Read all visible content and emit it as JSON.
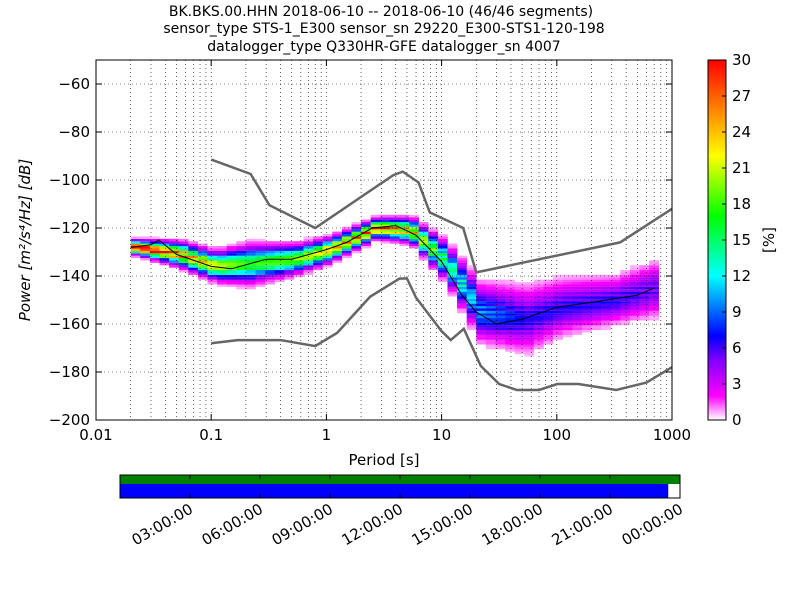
{
  "chart_data": {
    "type": "heatmap",
    "title_lines": [
      "BK.BKS.00.HHN   2018-06-10 -- 2018-06-10  (46/46 segments)",
      "sensor_type STS-1_E300 sensor_sn 29220_E300-STS1-120-198",
      "datalogger_type Q330HR-GFE datalogger_sn 4007"
    ],
    "xlabel": "Period [s]",
    "ylabel": "Power [m²/s⁴/Hz] [dB]",
    "xscale": "log",
    "xlim": [
      0.01,
      1000
    ],
    "ylim": [
      -200,
      -50
    ],
    "xticks": [
      {
        "v": 0.01,
        "l": "0.01"
      },
      {
        "v": 0.1,
        "l": "0.1"
      },
      {
        "v": 1,
        "l": "1"
      },
      {
        "v": 10,
        "l": "10"
      },
      {
        "v": 100,
        "l": "100"
      },
      {
        "v": 1000,
        "l": "1000"
      }
    ],
    "yticks": [
      {
        "v": -60,
        "l": "−60"
      },
      {
        "v": -80,
        "l": "−80"
      },
      {
        "v": -100,
        "l": "−100"
      },
      {
        "v": -120,
        "l": "−120"
      },
      {
        "v": -140,
        "l": "−140"
      },
      {
        "v": -160,
        "l": "−160"
      },
      {
        "v": -180,
        "l": "−180"
      },
      {
        "v": -200,
        "l": "−200"
      }
    ],
    "grid": true,
    "colorbar": {
      "label": "[%]",
      "range": [
        0,
        30
      ],
      "ticks": [
        "0",
        "3",
        "6",
        "9",
        "12",
        "15",
        "18",
        "21",
        "24",
        "27",
        "30"
      ]
    },
    "nhnm": [
      [
        0.1,
        -91.5
      ],
      [
        0.22,
        -97.5
      ],
      [
        0.32,
        -110.5
      ],
      [
        0.8,
        -120
      ],
      [
        3.8,
        -98
      ],
      [
        4.6,
        -96.5
      ],
      [
        6.3,
        -101
      ],
      [
        7.9,
        -113.5
      ],
      [
        15.4,
        -120
      ],
      [
        20,
        -138.5
      ],
      [
        354,
        -126
      ],
      [
        1000,
        -112
      ]
    ],
    "nlnm": [
      [
        0.1,
        -168
      ],
      [
        0.17,
        -166.7
      ],
      [
        0.4,
        -166.7
      ],
      [
        0.8,
        -169.2
      ],
      [
        1.24,
        -163.7
      ],
      [
        2.4,
        -148.6
      ],
      [
        4.3,
        -141.1
      ],
      [
        5,
        -141
      ],
      [
        6,
        -149
      ],
      [
        10,
        -163
      ],
      [
        12,
        -166.7
      ],
      [
        15.6,
        -162
      ],
      [
        21.9,
        -177.5
      ],
      [
        31.6,
        -185
      ],
      [
        45,
        -187.5
      ],
      [
        70,
        -187.5
      ],
      [
        101,
        -185
      ],
      [
        154,
        -185
      ],
      [
        328,
        -187.5
      ],
      [
        600,
        -184.4
      ],
      [
        1000,
        -178
      ]
    ],
    "mean": [
      [
        0.02,
        -128
      ],
      [
        0.03,
        -127
      ],
      [
        0.035,
        -125
      ],
      [
        0.05,
        -131
      ],
      [
        0.1,
        -136
      ],
      [
        0.15,
        -137
      ],
      [
        0.3,
        -133
      ],
      [
        0.5,
        -133
      ],
      [
        1,
        -129
      ],
      [
        1.5,
        -126
      ],
      [
        2.5,
        -120
      ],
      [
        4,
        -119
      ],
      [
        6,
        -123
      ],
      [
        10,
        -134
      ],
      [
        15,
        -148
      ],
      [
        20,
        -155
      ],
      [
        30,
        -160
      ],
      [
        50,
        -158
      ],
      [
        100,
        -153
      ],
      [
        200,
        -151
      ],
      [
        500,
        -148
      ],
      [
        700,
        -145
      ]
    ],
    "pdf_model": [
      [
        0.02,
        -128,
        1.5,
        30
      ],
      [
        0.05,
        -131,
        2.5,
        24
      ],
      [
        0.1,
        -136,
        3,
        20
      ],
      [
        0.2,
        -135,
        4,
        16
      ],
      [
        0.5,
        -133,
        3,
        18
      ],
      [
        1,
        -129,
        2.5,
        22
      ],
      [
        2.5,
        -120,
        2,
        26
      ],
      [
        5,
        -121,
        2.5,
        22
      ],
      [
        10,
        -134,
        4,
        14
      ],
      [
        20,
        -155,
        6,
        9
      ],
      [
        50,
        -158,
        7,
        6
      ],
      [
        100,
        -153,
        6,
        6
      ],
      [
        300,
        -150,
        5,
        6
      ],
      [
        700,
        -145,
        6,
        5
      ]
    ],
    "time_axis": {
      "ticks": [
        "03:00:00",
        "06:00:00",
        "09:00:00",
        "12:00:00",
        "15:00:00",
        "18:00:00",
        "21:00:00",
        "00:00:00"
      ],
      "data_coverage_fraction": 0.979,
      "colors": {
        "available": "#008000",
        "used": "#0000ff"
      }
    }
  }
}
